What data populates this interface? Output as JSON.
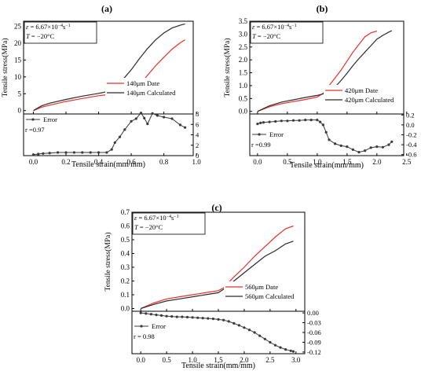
{
  "chart_data": [
    {
      "type": "line",
      "panel_label": "(a)",
      "annotation": {
        "rate_symbol": "ε",
        "rate": "= 6.67×10",
        "exponent": "−4",
        "unit": "s",
        "unit_exponent": "−1",
        "temp_symbol": "T",
        "temp": " = −20°C"
      },
      "upper": {
        "ylabel": "Tensile stress(MPa)",
        "ylim": [
          -1,
          26.5
        ],
        "yticks": [
          "0",
          "5",
          "10",
          "15",
          "20",
          "25"
        ],
        "legend_position": "bottom-right",
        "series": [
          {
            "name": "140μm Date",
            "color": "#e8302a",
            "x": [
              0,
              0.05,
              0.1,
              0.2,
              0.3,
              0.4,
              0.5,
              0.55,
              0.6,
              0.65,
              0.7,
              0.75,
              0.8,
              0.85,
              0.9,
              0.93
            ],
            "y": [
              0,
              1,
              1.6,
              2.7,
              3.6,
              4.4,
              5,
              5.3,
              5.9,
              7.5,
              10.5,
              13.3,
              15.8,
              18.2,
              20.1,
              21
            ]
          },
          {
            "name": "140μm Calculated",
            "color": "#2b2b2b",
            "x": [
              0,
              0.05,
              0.1,
              0.2,
              0.3,
              0.4,
              0.45,
              0.5,
              0.55,
              0.6,
              0.65,
              0.7,
              0.75,
              0.8,
              0.85,
              0.9,
              0.93
            ],
            "y": [
              0,
              1.4,
              2.2,
              3.3,
              4.3,
              5.1,
              5.6,
              6.5,
              9.3,
              12.1,
              15.4,
              18.4,
              21,
              23,
              24.5,
              25.3,
              25.7
            ]
          }
        ]
      },
      "lower": {
        "yticks": [
          "0",
          "2",
          "4",
          "6",
          "8"
        ],
        "ylim": [
          0,
          8
        ],
        "yaxis_side": "right",
        "legend": "Error",
        "r_label": "r =0.97",
        "series": {
          "name": "Error",
          "color": "#3a3a3a",
          "x": [
            0,
            0.03,
            0.06,
            0.1,
            0.15,
            0.2,
            0.25,
            0.3,
            0.35,
            0.4,
            0.45,
            0.48,
            0.5,
            0.53,
            0.56,
            0.6,
            0.63,
            0.66,
            0.68,
            0.7,
            0.73,
            0.76,
            0.8,
            0.85,
            0.9,
            0.93
          ],
          "y": [
            0.2,
            0.3,
            0.4,
            0.5,
            0.6,
            0.6,
            0.6,
            0.6,
            0.6,
            0.6,
            0.6,
            1.2,
            2.5,
            3.6,
            5,
            6.6,
            7.1,
            8.2,
            7.2,
            6.1,
            8.1,
            7.7,
            7.4,
            7.1,
            5.9,
            5.4
          ]
        }
      },
      "xlabel": "Tensile strain(mm/mm)",
      "xticks": [
        "0.0",
        "0.2",
        "0.4",
        "0.6",
        "0.8",
        "1.0"
      ],
      "xlim": [
        -0.06,
        0.98
      ]
    },
    {
      "type": "line",
      "panel_label": "(b)",
      "annotation": {
        "rate_symbol": "ε",
        "rate": "= 6.67×10",
        "exponent": "−4",
        "unit": "s",
        "unit_exponent": "−1",
        "temp_symbol": "T",
        "temp": " = −20°C"
      },
      "upper": {
        "ylabel": "Tensile stress(MPa)",
        "ylim": [
          -0.1,
          3.5
        ],
        "yticks": [
          "0.0",
          "0.5",
          "1.0",
          "1.5",
          "2.0",
          "2.5",
          "3.0",
          "3.5"
        ],
        "legend_position": "bottom-right",
        "series": [
          {
            "name": "420μm Date",
            "color": "#e8302a",
            "x": [
              0,
              0.2,
              0.4,
              0.6,
              0.8,
              1.0,
              1.1,
              1.2,
              1.3,
              1.4,
              1.5,
              1.6,
              1.7,
              1.8,
              1.9,
              2.0
            ],
            "y": [
              0,
              0.18,
              0.3,
              0.38,
              0.46,
              0.56,
              0.7,
              1.0,
              1.3,
              1.6,
              1.95,
              2.3,
              2.6,
              2.9,
              3.05,
              3.12
            ]
          },
          {
            "name": "420μm Calculated",
            "color": "#2b2b2b",
            "x": [
              0,
              0.2,
              0.4,
              0.6,
              0.8,
              1.0,
              1.1,
              1.2,
              1.3,
              1.4,
              1.5,
              1.6,
              1.7,
              1.8,
              1.9,
              2.0,
              2.1,
              2.2,
              2.25
            ],
            "y": [
              0,
              0.22,
              0.36,
              0.45,
              0.54,
              0.62,
              0.68,
              0.75,
              0.95,
              1.2,
              1.48,
              1.78,
              2.05,
              2.3,
              2.55,
              2.8,
              2.95,
              3.08,
              3.13
            ]
          }
        ]
      },
      "lower": {
        "yticks": [
          "0.2",
          "0.0",
          "-0.2",
          "-0.4",
          "-0.6"
        ],
        "ylim": [
          -0.62,
          0.22
        ],
        "yaxis_side": "right",
        "legend": "Error",
        "r_label": "r =0.99",
        "series": {
          "name": "Error",
          "color": "#3a3a3a",
          "x": [
            0,
            0.05,
            0.1,
            0.2,
            0.3,
            0.4,
            0.5,
            0.6,
            0.7,
            0.8,
            0.9,
            1.0,
            1.05,
            1.1,
            1.15,
            1.2,
            1.3,
            1.4,
            1.5,
            1.6,
            1.7,
            1.8,
            1.9,
            2.0,
            2.1,
            2.2,
            2.25
          ],
          "y": [
            0.02,
            0.04,
            0.05,
            0.06,
            0.07,
            0.08,
            0.08,
            0.09,
            0.09,
            0.1,
            0.1,
            0.1,
            0.06,
            0.0,
            -0.15,
            -0.3,
            -0.38,
            -0.42,
            -0.44,
            -0.5,
            -0.55,
            -0.52,
            -0.46,
            -0.44,
            -0.45,
            -0.4,
            -0.34
          ]
        }
      },
      "xlabel": "Tensile strain(mm/mm)",
      "xticks": [
        "0.0",
        "0.5",
        "1.0",
        "1.5",
        "2.0",
        "2.5"
      ],
      "xlim": [
        -0.13,
        2.45
      ]
    },
    {
      "type": "line",
      "panel_label": "(c)",
      "annotation": {
        "rate_symbol": "ε",
        "rate": "= 6.67×10",
        "exponent": "−4",
        "unit": "s",
        "unit_exponent": "−1",
        "temp_symbol": "T",
        "temp": " = −20°C"
      },
      "upper": {
        "ylabel": "Tensile stress(MPa)",
        "ylim": [
          -0.02,
          0.7
        ],
        "yticks": [
          "0.0",
          "0.1",
          "0.2",
          "0.3",
          "0.4",
          "0.5",
          "0.6",
          "0.7"
        ],
        "legend_position": "bottom-right",
        "series": [
          {
            "name": "560μm Date",
            "color": "#e8302a",
            "x": [
              0,
              0.25,
              0.5,
              0.75,
              1.0,
              1.25,
              1.5,
              1.6,
              1.7,
              1.8,
              2.0,
              2.2,
              2.4,
              2.6,
              2.8,
              2.95
            ],
            "y": [
              0,
              0.04,
              0.07,
              0.085,
              0.1,
              0.115,
              0.13,
              0.15,
              0.19,
              0.23,
              0.3,
              0.38,
              0.45,
              0.52,
              0.58,
              0.6
            ]
          },
          {
            "name": "560μm Calculated",
            "color": "#2b2b2b",
            "x": [
              0,
              0.25,
              0.5,
              0.75,
              1.0,
              1.25,
              1.5,
              1.6,
              1.7,
              1.8,
              2.0,
              2.2,
              2.4,
              2.6,
              2.8,
              2.95
            ],
            "y": [
              0,
              0.03,
              0.055,
              0.07,
              0.085,
              0.1,
              0.115,
              0.14,
              0.17,
              0.2,
              0.26,
              0.32,
              0.38,
              0.42,
              0.47,
              0.49
            ]
          }
        ]
      },
      "lower": {
        "yticks": [
          "0.00",
          "-0.03",
          "-0.06",
          "-0.09",
          "-0.12"
        ],
        "ylim": [
          -0.125,
          0.005
        ],
        "yaxis_side": "right",
        "legend": "Error",
        "r_label": "r = 0.98",
        "series": {
          "name": "Error",
          "color": "#3a3a3a",
          "x": [
            0,
            0.1,
            0.2,
            0.3,
            0.4,
            0.5,
            0.6,
            0.7,
            0.8,
            0.9,
            1.0,
            1.1,
            1.2,
            1.3,
            1.4,
            1.5,
            1.6,
            1.7,
            1.8,
            1.9,
            2.0,
            2.1,
            2.2,
            2.3,
            2.4,
            2.5,
            2.6,
            2.7,
            2.8,
            2.9,
            2.95
          ],
          "y": [
            0.0,
            -0.002,
            -0.004,
            -0.006,
            -0.008,
            -0.01,
            -0.011,
            -0.012,
            -0.012,
            -0.013,
            -0.014,
            -0.015,
            -0.016,
            -0.017,
            -0.018,
            -0.02,
            -0.022,
            -0.026,
            -0.032,
            -0.038,
            -0.045,
            -0.052,
            -0.06,
            -0.07,
            -0.08,
            -0.09,
            -0.099,
            -0.106,
            -0.112,
            -0.116,
            -0.118
          ]
        }
      },
      "xlabel": "Tensile strain(mm/mm)",
      "xticks": [
        "0.0",
        "0.5",
        "1.0",
        "1.5",
        "2.0",
        "2.5",
        "3.0"
      ],
      "xlim": [
        -0.17,
        3.17
      ]
    }
  ]
}
